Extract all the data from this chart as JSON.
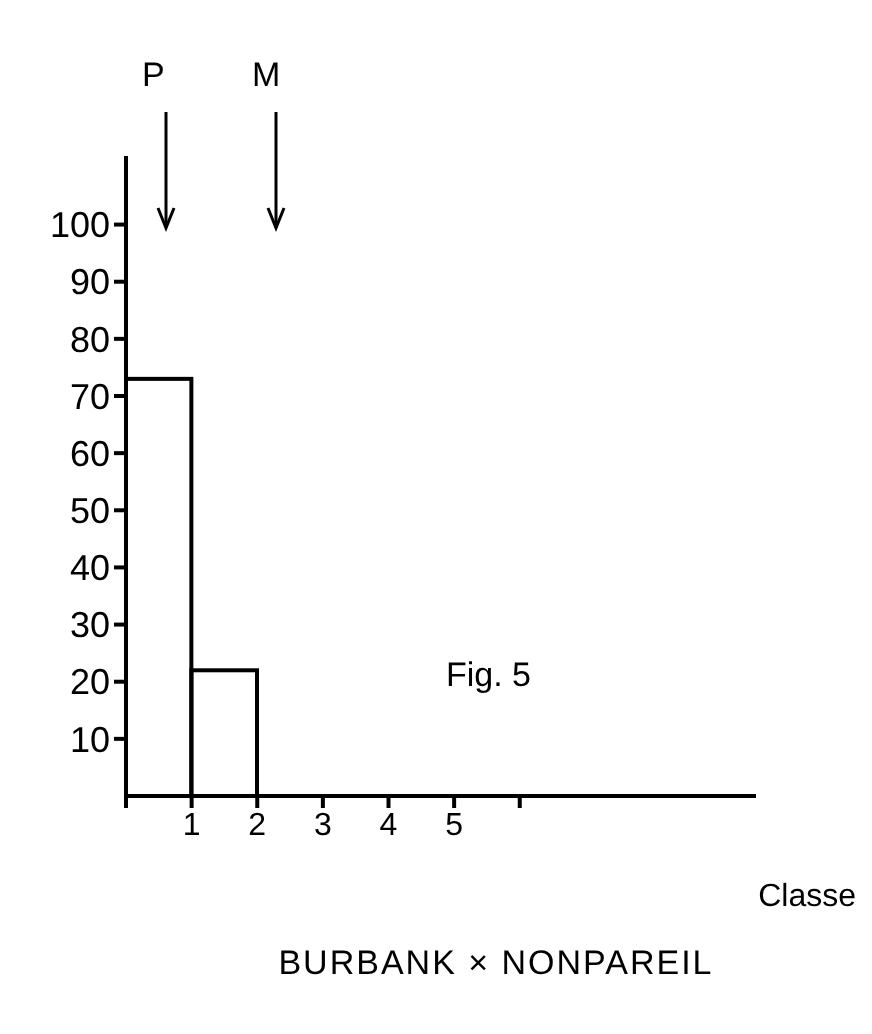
{
  "chart_data": {
    "type": "histogram",
    "title": "BURBANK × NONPAREIL",
    "xlabel": "Classe",
    "bins": [
      0,
      1,
      2
    ],
    "values": [
      73,
      22
    ],
    "color": "#000000",
    "xlim": [
      0,
      9.6
    ],
    "xticks": [
      {
        "value": 0,
        "label": null
      },
      1,
      2,
      3,
      4,
      5,
      {
        "value": 6,
        "label": null
      }
    ],
    "ylim": [
      0,
      112
    ],
    "yticks": [
      10,
      20,
      30,
      40,
      50,
      60,
      70,
      80,
      90,
      100
    ],
    "grid": false,
    "legend": false,
    "annotations": [
      "P",
      "M",
      "Fig. 5"
    ]
  }
}
